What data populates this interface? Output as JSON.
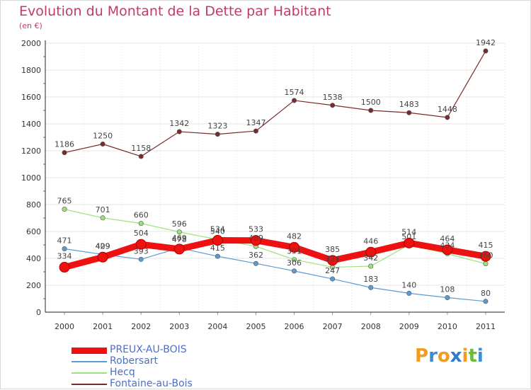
{
  "title": "Evolution du Montant de la Dette par Habitant",
  "subtitle": "(en €)",
  "logo": {
    "text": "Proxiti",
    "letters": [
      "P",
      "r",
      "o",
      "x",
      "i",
      "t",
      "i"
    ],
    "colors": [
      "#f29b1e",
      "#3a8fd4",
      "#f29b1e",
      "#2e7bd0",
      "#f29b1e",
      "#6dbb3a",
      "#3a8fd4"
    ]
  },
  "chart_data": {
    "type": "line",
    "x": [
      "2000",
      "2001",
      "2002",
      "2003",
      "2004",
      "2005",
      "2006",
      "2007",
      "2008",
      "2009",
      "2010",
      "2011"
    ],
    "ylim": [
      0,
      2000
    ],
    "yticks": [
      0,
      200,
      400,
      600,
      800,
      1000,
      1200,
      1400,
      1600,
      1800,
      2000
    ],
    "grid": true,
    "legend_position": "bottom-left",
    "series": [
      {
        "name": "Fontaine-au-Bois",
        "color": "#7a2a2a",
        "width": 1.2,
        "values": [
          1186,
          1250,
          1158,
          1342,
          1323,
          1347,
          1574,
          1538,
          1500,
          1483,
          1448,
          1942
        ]
      },
      {
        "name": "Hecq",
        "color": "#9be27a",
        "width": 1.2,
        "values": [
          765,
          701,
          660,
          596,
          540,
          489,
          391,
          334,
          342,
          501,
          434,
          360
        ]
      },
      {
        "name": "Robersart",
        "color": "#5b9bd5",
        "width": 1.2,
        "values": [
          471,
          429,
          393,
          478,
          415,
          362,
          306,
          247,
          183,
          140,
          108,
          80
        ]
      },
      {
        "name": "PREUX-AU-BOIS",
        "color": "#ee1111",
        "width": 9,
        "values": [
          334,
          409,
          504,
          469,
          534,
          533,
          482,
          385,
          446,
          514,
          464,
          415
        ]
      }
    ],
    "legend_order": [
      "PREUX-AU-BOIS",
      "Robersart",
      "Hecq",
      "Fontaine-au-Bois"
    ]
  }
}
